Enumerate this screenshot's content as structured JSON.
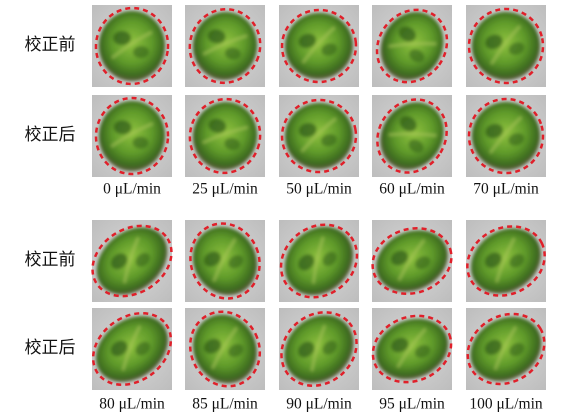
{
  "groups": [
    {
      "rows": [
        "校正前",
        "校正后"
      ],
      "columns": [
        "0 μL/min",
        "25 μL/min",
        "50 μL/min",
        "60 μL/min",
        "70 μL/min"
      ]
    },
    {
      "rows": [
        "校正前",
        "校正后"
      ],
      "columns": [
        "80 μL/min",
        "85 μL/min",
        "90 μL/min",
        "95 μL/min",
        "100 μL/min"
      ]
    }
  ]
}
